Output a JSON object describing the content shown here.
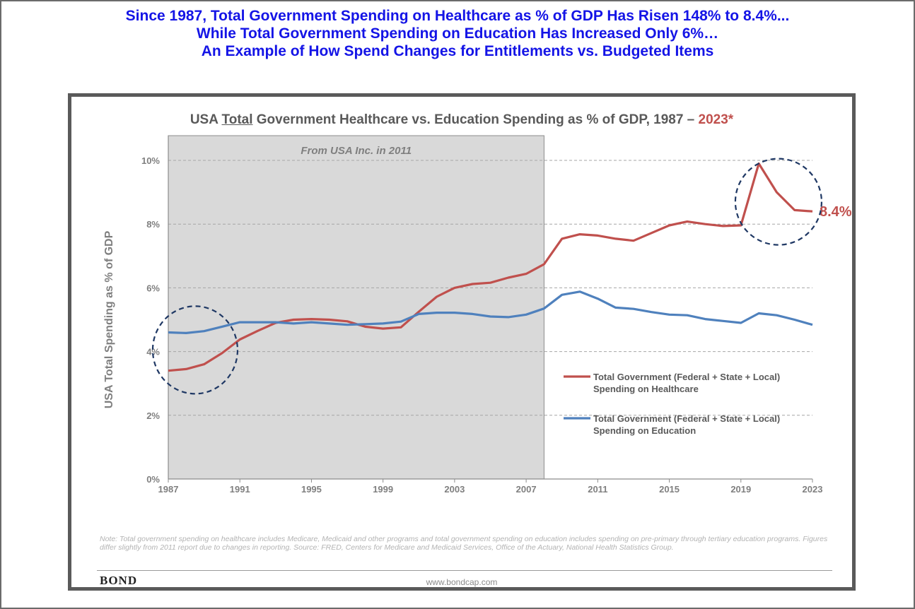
{
  "headline": {
    "line1": "Since 1987, Total Government Spending on Healthcare as % of GDP Has Risen 148% to 8.4%...",
    "line2": "While Total Government Spending on Education Has Increased Only 6%…",
    "line3": "An Example of How Spend Changes for Entitlements vs. Budgeted Items"
  },
  "chart_data": {
    "type": "line",
    "title_prefix": "USA ",
    "title_underlined": "Total",
    "title_mid": " Government Healthcare vs. Education Spending as % of GDP, 1987 – ",
    "title_highlight": "2023*",
    "ylabel": "USA Total Spending as % of GDP",
    "xlabel": "",
    "xlim": [
      1987,
      2023
    ],
    "ylim": [
      0,
      10
    ],
    "y_ticks": [
      0,
      2,
      4,
      6,
      8,
      10
    ],
    "y_tick_labels": [
      "0%",
      "2%",
      "4%",
      "6%",
      "8%",
      "10%"
    ],
    "x_ticks": [
      1987,
      1991,
      1995,
      1999,
      2003,
      2007,
      2011,
      2015,
      2019,
      2023
    ],
    "x_tick_labels": [
      "1987",
      "1991",
      "1995",
      "1999",
      "2003",
      "2007",
      "2011",
      "2015",
      "2019",
      "2023"
    ],
    "grid": "horizontal-dashed",
    "shaded_region": {
      "x_start": 1987,
      "x_end": 2008,
      "label": "From USA Inc. in 2011"
    },
    "end_label": "8.4%",
    "x": [
      1987,
      1988,
      1989,
      1990,
      1991,
      1992,
      1993,
      1994,
      1995,
      1996,
      1997,
      1998,
      1999,
      2000,
      2001,
      2002,
      2003,
      2004,
      2005,
      2006,
      2007,
      2008,
      2009,
      2010,
      2011,
      2012,
      2013,
      2014,
      2015,
      2016,
      2017,
      2018,
      2019,
      2020,
      2021,
      2022,
      2023
    ],
    "series": [
      {
        "name": "Total Government (Federal + State + Local) Spending on Healthcare",
        "legend_line1": "Total Government (Federal + State + Local)",
        "legend_line2": "Spending on Healthcare",
        "color": "#c0504d",
        "values": [
          3.4,
          3.45,
          3.6,
          3.95,
          4.38,
          4.65,
          4.9,
          5.0,
          5.02,
          5.0,
          4.95,
          4.78,
          4.72,
          4.76,
          5.25,
          5.72,
          6.0,
          6.12,
          6.16,
          6.32,
          6.44,
          6.74,
          7.54,
          7.68,
          7.64,
          7.54,
          7.48,
          7.72,
          7.96,
          8.08,
          8.0,
          7.94,
          7.96,
          9.9,
          9.0,
          8.44,
          8.4
        ]
      },
      {
        "name": "Total Government (Federal + State + Local) Spending on Education",
        "legend_line1": "Total Government (Federal + State + Local)",
        "legend_line2": "Spending on Education",
        "color": "#4f81bd",
        "values": [
          4.6,
          4.58,
          4.64,
          4.78,
          4.92,
          4.92,
          4.92,
          4.88,
          4.92,
          4.88,
          4.84,
          4.86,
          4.88,
          4.94,
          5.18,
          5.22,
          5.22,
          5.18,
          5.1,
          5.08,
          5.16,
          5.35,
          5.78,
          5.88,
          5.66,
          5.38,
          5.34,
          5.24,
          5.16,
          5.14,
          5.02,
          4.96,
          4.9,
          5.2,
          5.14,
          5.0,
          4.84
        ]
      }
    ],
    "legend": "lower-right"
  },
  "footnote": "Note: Total government spending on healthcare includes Medicare, Medicaid and other programs and total government spending on education includes spending on pre-primary through tertiary education programs. Figures differ slightly from 2011 report due to changes in reporting. Source: FRED, Centers for Medicare and Medicaid Services, Office of the Actuary, National Health Statistics Group.",
  "footer": {
    "logo": "BOND",
    "website": "www.bondcap.com"
  },
  "colors": {
    "headline": "#1414e6",
    "healthcare": "#c0504d",
    "education": "#4f81bd",
    "annotation_circle": "#1f3864"
  }
}
